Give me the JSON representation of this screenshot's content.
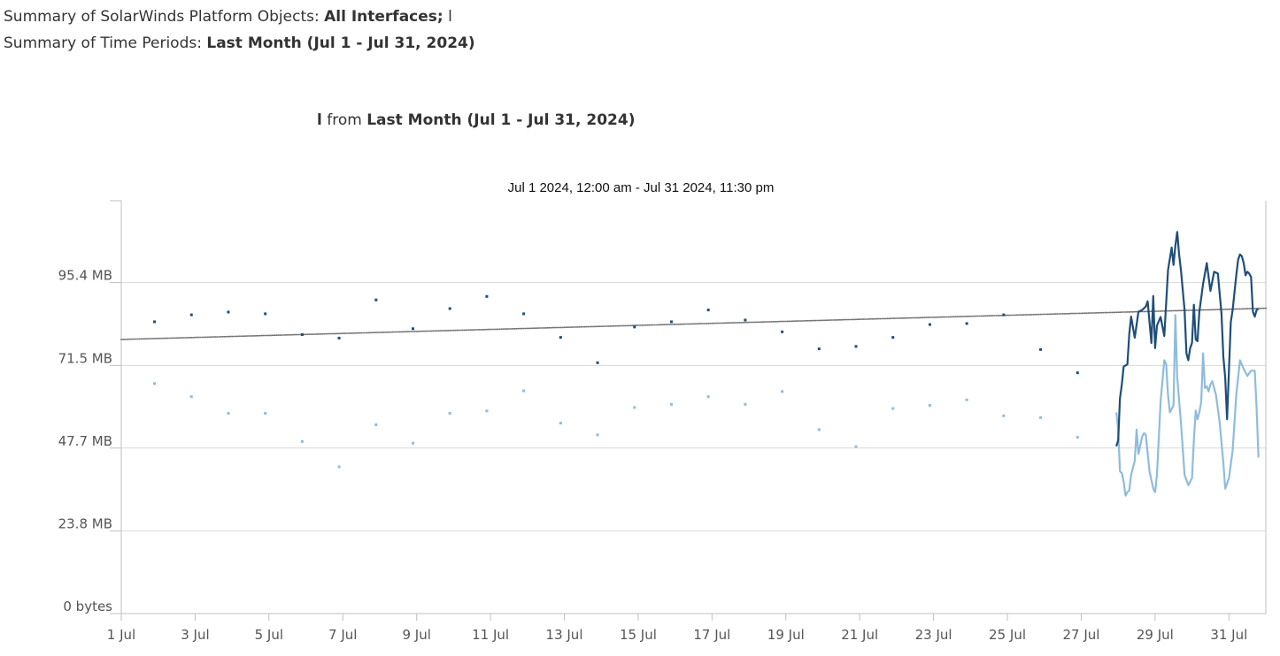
{
  "header": {
    "objects_label": "Summary of SolarWinds Platform Objects:",
    "objects_value": "All Interfaces;",
    "objects_extra": "l",
    "periods_label": "Summary of Time Periods:",
    "periods_value": "Last Month (Jul 1 - Jul 31, 2024)"
  },
  "subtitle": {
    "object": "l",
    "from_word": "from",
    "period": "Last Month (Jul 1 - Jul 31, 2024)"
  },
  "chart_data": {
    "type": "line",
    "title": "Jul 1 2024, 12:00 am - Jul 31 2024, 11:30 pm",
    "xlabel": "",
    "ylabel": "",
    "x_ticks": [
      "1 Jul",
      "3 Jul",
      "5 Jul",
      "7 Jul",
      "9 Jul",
      "11 Jul",
      "13 Jul",
      "15 Jul",
      "17 Jul",
      "19 Jul",
      "21 Jul",
      "23 Jul",
      "25 Jul",
      "27 Jul",
      "29 Jul",
      "31 Jul"
    ],
    "x_range_days": [
      1,
      32
    ],
    "y_ticks": [
      {
        "label": "0 bytes",
        "value": 0
      },
      {
        "label": "23.8 MB",
        "value": 23.8
      },
      {
        "label": "47.7 MB",
        "value": 47.7
      },
      {
        "label": "71.5 MB",
        "value": 71.5
      },
      {
        "label": "95.4 MB",
        "value": 95.4
      }
    ],
    "ylim": [
      0,
      119
    ],
    "grid": true,
    "colors": {
      "total": "#1f4e79",
      "transmit": "#8fbcdc",
      "trend": "#707070",
      "axis": "#bfbfbf"
    },
    "series": [
      {
        "key": "total",
        "daily_points": [
          [
            1.9,
            84.1
          ],
          [
            2.9,
            86.1
          ],
          [
            3.9,
            86.9
          ],
          [
            4.9,
            86.4
          ],
          [
            5.9,
            80.4
          ],
          [
            6.9,
            79.4
          ],
          [
            7.9,
            90.4
          ],
          [
            8.9,
            82.1
          ],
          [
            9.9,
            87.9
          ],
          [
            10.9,
            91.4
          ],
          [
            11.9,
            86.4
          ],
          [
            12.9,
            79.6
          ],
          [
            13.9,
            72.3
          ],
          [
            14.9,
            82.6
          ],
          [
            15.9,
            84.1
          ],
          [
            16.9,
            87.5
          ],
          [
            17.9,
            84.6
          ],
          [
            18.9,
            81.2
          ],
          [
            19.9,
            76.3
          ],
          [
            20.9,
            77.0
          ],
          [
            21.9,
            79.6
          ],
          [
            22.9,
            83.3
          ],
          [
            23.9,
            83.6
          ],
          [
            24.9,
            86.1
          ],
          [
            25.9,
            76.1
          ],
          [
            26.9,
            69.4
          ]
        ],
        "line_points": [
          [
            27.95,
            48.2
          ],
          [
            28.0,
            50.0
          ],
          [
            28.05,
            62.0
          ],
          [
            28.1,
            66.0
          ],
          [
            28.15,
            71.2
          ],
          [
            28.25,
            71.8
          ],
          [
            28.3,
            80.5
          ],
          [
            28.35,
            85.6
          ],
          [
            28.45,
            79.5
          ],
          [
            28.55,
            87.0
          ],
          [
            28.65,
            87.5
          ],
          [
            28.75,
            88.5
          ],
          [
            28.8,
            90.0
          ],
          [
            28.85,
            84.0
          ],
          [
            28.9,
            78.0
          ],
          [
            28.95,
            91.5
          ],
          [
            29.0,
            76.5
          ],
          [
            29.05,
            83.0
          ],
          [
            29.15,
            85.5
          ],
          [
            29.25,
            80.0
          ],
          [
            29.35,
            99.0
          ],
          [
            29.45,
            105.5
          ],
          [
            29.5,
            100.5
          ],
          [
            29.55,
            106.0
          ],
          [
            29.6,
            110.0
          ],
          [
            29.65,
            103.5
          ],
          [
            29.7,
            99.0
          ],
          [
            29.8,
            87.5
          ],
          [
            29.85,
            75.0
          ],
          [
            29.9,
            73.0
          ],
          [
            29.95,
            76.5
          ],
          [
            30.0,
            78.0
          ],
          [
            30.05,
            89.0
          ],
          [
            30.1,
            79.0
          ],
          [
            30.15,
            78.5
          ],
          [
            30.2,
            87.0
          ],
          [
            30.3,
            95.0
          ],
          [
            30.4,
            101.0
          ],
          [
            30.5,
            93.0
          ],
          [
            30.6,
            98.5
          ],
          [
            30.7,
            98.0
          ],
          [
            30.8,
            86.5
          ],
          [
            30.85,
            74.0
          ],
          [
            30.9,
            68.0
          ],
          [
            30.95,
            56.0
          ],
          [
            31.05,
            84.0
          ],
          [
            31.1,
            87.5
          ],
          [
            31.2,
            97.5
          ],
          [
            31.25,
            102.0
          ],
          [
            31.3,
            103.5
          ],
          [
            31.35,
            103.0
          ],
          [
            31.4,
            101.0
          ],
          [
            31.45,
            97.5
          ],
          [
            31.5,
            98.5
          ],
          [
            31.55,
            98.0
          ],
          [
            31.6,
            97.0
          ],
          [
            31.65,
            87.0
          ],
          [
            31.7,
            85.6
          ],
          [
            31.75,
            87.5
          ],
          [
            31.8,
            87.8
          ]
        ]
      },
      {
        "key": "transmit",
        "daily_points": [
          [
            1.9,
            66.3
          ],
          [
            2.9,
            62.5
          ],
          [
            3.9,
            57.7
          ],
          [
            4.9,
            57.7
          ],
          [
            5.9,
            49.6
          ],
          [
            6.9,
            42.3
          ],
          [
            7.9,
            54.4
          ],
          [
            8.9,
            49.1
          ],
          [
            9.9,
            57.7
          ],
          [
            10.9,
            58.4
          ],
          [
            11.9,
            64.2
          ],
          [
            12.9,
            54.9
          ],
          [
            13.9,
            51.5
          ],
          [
            14.9,
            59.4
          ],
          [
            15.9,
            60.3
          ],
          [
            16.9,
            62.5
          ],
          [
            17.9,
            60.3
          ],
          [
            18.9,
            64.0
          ],
          [
            19.9,
            53.0
          ],
          [
            20.9,
            48.1
          ],
          [
            21.9,
            59.1
          ],
          [
            22.9,
            60.0
          ],
          [
            23.9,
            61.6
          ],
          [
            24.9,
            57.0
          ],
          [
            25.9,
            56.5
          ],
          [
            26.9,
            50.8
          ]
        ],
        "line_points": [
          [
            27.95,
            58.0
          ],
          [
            28.0,
            53.0
          ],
          [
            28.05,
            41.0
          ],
          [
            28.1,
            40.5
          ],
          [
            28.15,
            38.0
          ],
          [
            28.2,
            34.0
          ],
          [
            28.25,
            35.0
          ],
          [
            28.3,
            35.5
          ],
          [
            28.35,
            40.0
          ],
          [
            28.45,
            44.0
          ],
          [
            28.5,
            53.0
          ],
          [
            28.55,
            46.0
          ],
          [
            28.65,
            51.0
          ],
          [
            28.7,
            52.0
          ],
          [
            28.75,
            51.5
          ],
          [
            28.85,
            41.0
          ],
          [
            28.95,
            36.0
          ],
          [
            29.0,
            35.0
          ],
          [
            29.05,
            40.0
          ],
          [
            29.15,
            61.0
          ],
          [
            29.25,
            73.0
          ],
          [
            29.3,
            72.0
          ],
          [
            29.35,
            63.0
          ],
          [
            29.4,
            58.0
          ],
          [
            29.5,
            60.0
          ],
          [
            29.55,
            86.0
          ],
          [
            29.6,
            68.0
          ],
          [
            29.7,
            55.0
          ],
          [
            29.8,
            40.0
          ],
          [
            29.9,
            37.0
          ],
          [
            30.0,
            39.0
          ],
          [
            30.05,
            50.0
          ],
          [
            30.1,
            58.5
          ],
          [
            30.15,
            56.0
          ],
          [
            30.2,
            58.0
          ],
          [
            30.25,
            61.0
          ],
          [
            30.3,
            75.0
          ],
          [
            30.35,
            65.0
          ],
          [
            30.4,
            65.5
          ],
          [
            30.45,
            64.0
          ],
          [
            30.5,
            66.0
          ],
          [
            30.55,
            67.0
          ],
          [
            30.65,
            63.0
          ],
          [
            30.75,
            55.0
          ],
          [
            30.85,
            43.5
          ],
          [
            30.9,
            36.0
          ],
          [
            31.0,
            39.0
          ],
          [
            31.1,
            47.0
          ],
          [
            31.2,
            63.0
          ],
          [
            31.3,
            73.0
          ],
          [
            31.4,
            70.5
          ],
          [
            31.5,
            68.5
          ],
          [
            31.6,
            70.0
          ],
          [
            31.7,
            70.0
          ],
          [
            31.75,
            59.0
          ],
          [
            31.8,
            45.0
          ]
        ]
      },
      {
        "key": "trend",
        "start": [
          1,
          79.0
        ],
        "end": [
          32,
          88.0
        ],
        "samples": 620
      }
    ]
  }
}
